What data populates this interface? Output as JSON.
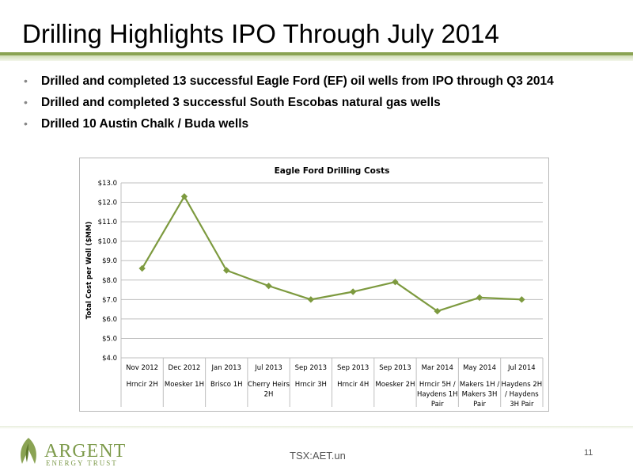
{
  "slide": {
    "title": "Drilling Highlights IPO Through July 2014",
    "bullets": [
      "Drilled and completed 13 successful Eagle Ford (EF) oil wells from IPO through Q3 2014",
      "Drilled and completed 3 successful South Escobas natural gas wells",
      "Drilled 10 Austin Chalk / Buda wells"
    ],
    "footer": {
      "logo_main": "ARGENT",
      "logo_sub": "ENERGY TRUST",
      "ticker": "TSX:AET.un",
      "page_number": "11"
    },
    "colors": {
      "accent": "#8aa353",
      "series": "#7d9a3f",
      "grid": "#bfbfbf"
    }
  },
  "chart_data": {
    "type": "line",
    "title": "Eagle Ford Drilling Costs",
    "ylabel": "Total Cost per Well ($MM)",
    "xlabel": "",
    "ylim": [
      4.0,
      13.0
    ],
    "y_ticks": [
      "$4.0",
      "$5.0",
      "$6.0",
      "$7.0",
      "$8.0",
      "$9.0",
      "$10.0",
      "$11.0",
      "$12.0",
      "$13.0"
    ],
    "categories": [
      "Nov 2012",
      "Dec 2012",
      "Jan 2013",
      "Jul 2013",
      "Sep 2013",
      "Sep 2013",
      "Sep 2013",
      "Mar 2014",
      "May 2014",
      "Jul 2014"
    ],
    "category_sublabels": [
      "Hrncir 2H",
      "Moesker 1H",
      "Brisco 1H",
      "Cherry Heirs 2H",
      "Hrncir 3H",
      "Hrncir 4H",
      "Moesker 2H",
      "Hrncir 5H / Haydens 1H Pair",
      "Makers 1H / Makers 3H Pair",
      "Haydens 2H / Haydens 3H Pair"
    ],
    "series": [
      {
        "values": [
          8.6,
          12.3,
          8.5,
          7.7,
          7.0,
          7.4,
          7.9,
          6.4,
          7.1,
          7.0
        ]
      }
    ],
    "grid": true,
    "legend": "none"
  }
}
